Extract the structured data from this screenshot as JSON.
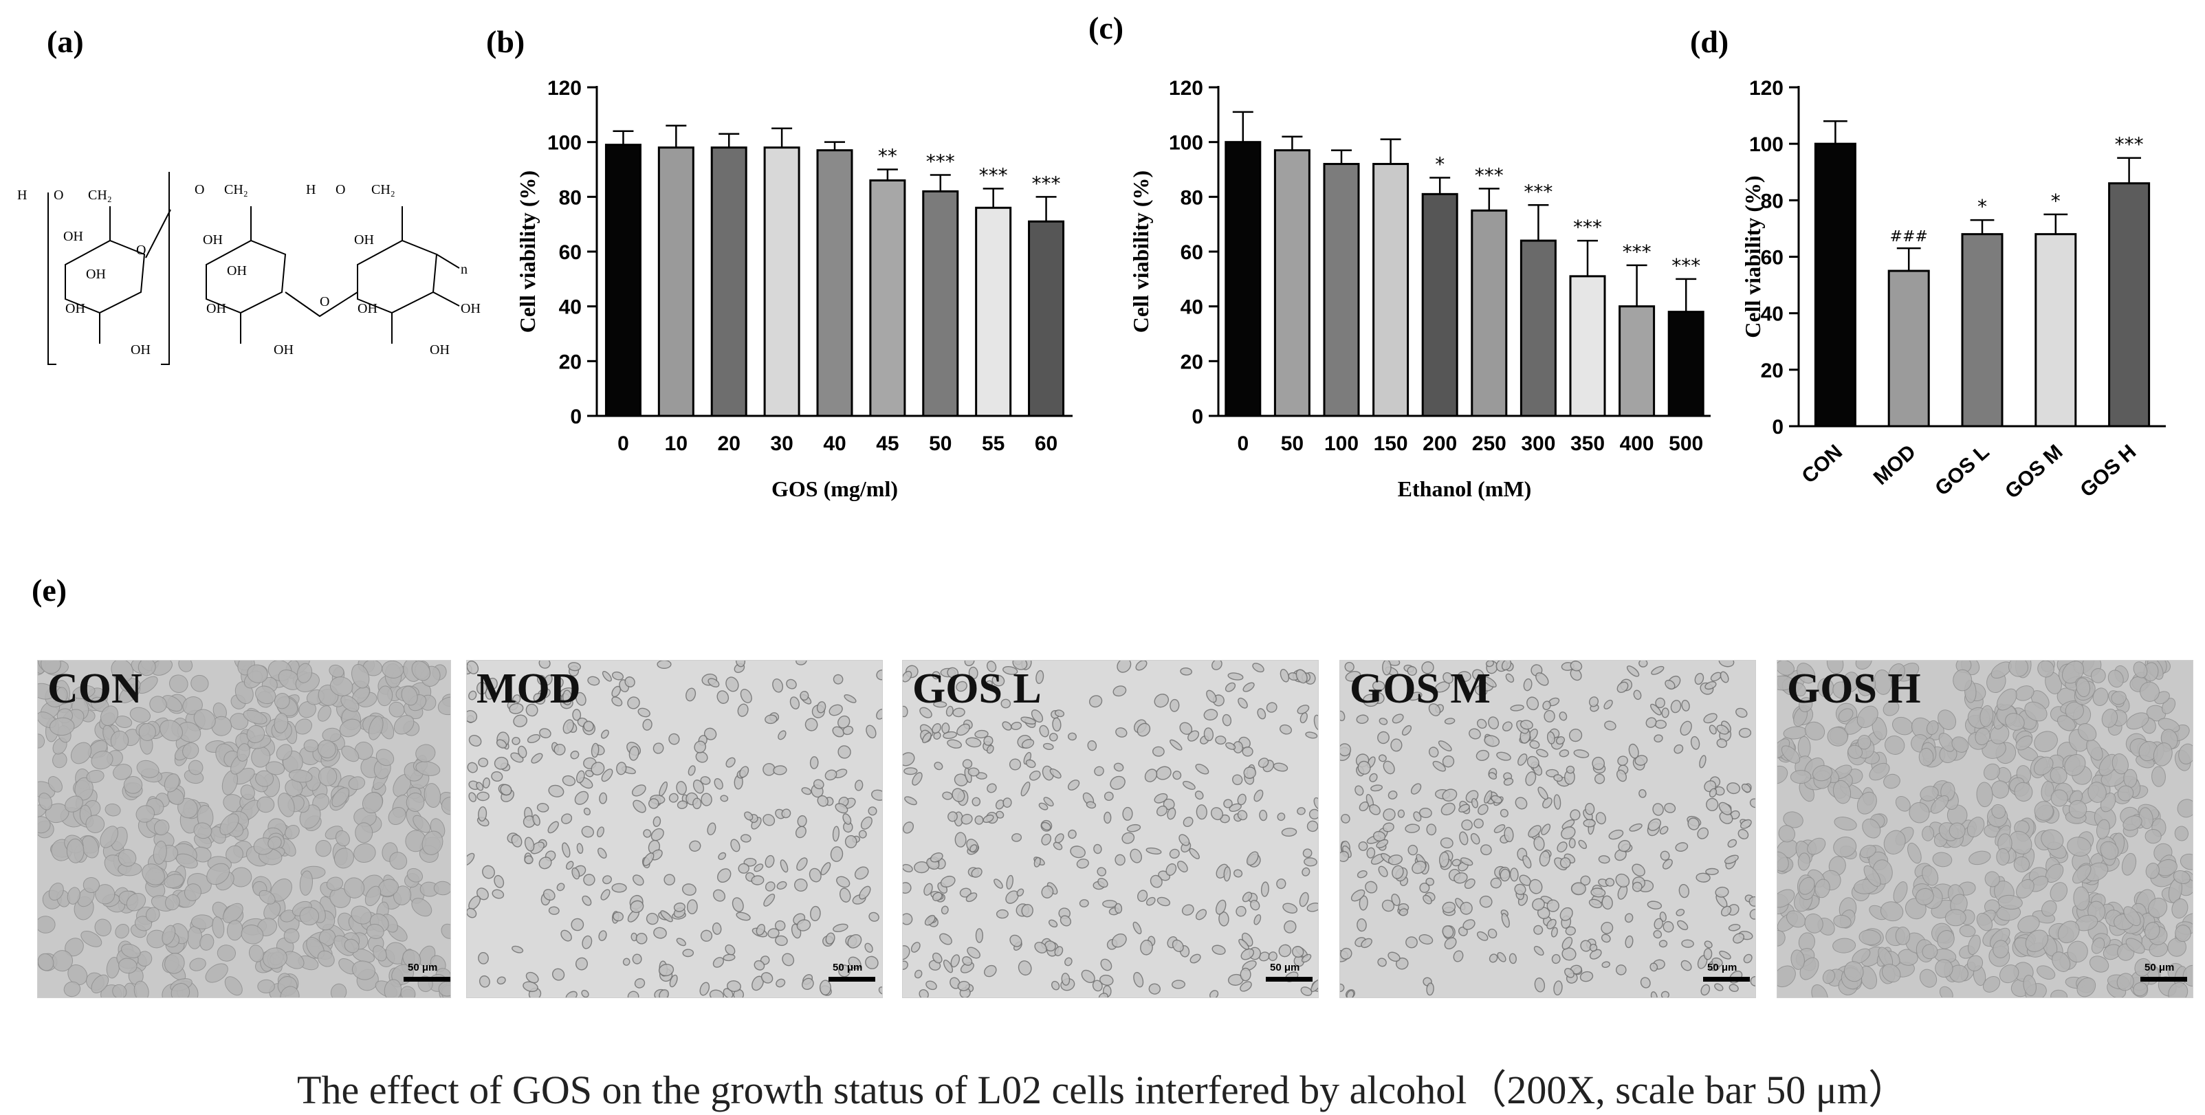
{
  "panel_labels": {
    "a": "(a)",
    "b": "(b)",
    "c": "(c)",
    "d": "(d)",
    "e": "(e)"
  },
  "structure": {
    "labels": [
      "H",
      "O",
      "CH₂",
      "O",
      "CH₂",
      "H",
      "O",
      "CH₂",
      "O",
      "OH",
      "OH",
      "OH",
      "OH",
      "OH",
      "OH",
      "OH",
      "OH",
      "OH",
      "O",
      "OH",
      "OH",
      "OH",
      "n"
    ]
  },
  "chart_data": [
    {
      "id": "b",
      "type": "bar",
      "title": "",
      "xlabel": "GOS (mg/ml)",
      "ylabel": "Cell viability (%)",
      "ylim": [
        0,
        120
      ],
      "yticks": [
        0,
        20,
        40,
        60,
        80,
        100,
        120
      ],
      "categories": [
        "0",
        "10",
        "20",
        "30",
        "40",
        "45",
        "50",
        "55",
        "60"
      ],
      "values": [
        99,
        98,
        98,
        98,
        97,
        86,
        82,
        76,
        71
      ],
      "errors": [
        5,
        8,
        5,
        7,
        3,
        4,
        6,
        7,
        9
      ],
      "significance": [
        "",
        "",
        "",
        "",
        "",
        "**",
        "***",
        "***",
        "***"
      ],
      "colors": [
        "#050505",
        "#9a9a9a",
        "#6e6e6e",
        "#d8d8d8",
        "#8a8a8a",
        "#a7a7a7",
        "#7b7b7b",
        "#e6e6e6",
        "#565656"
      ]
    },
    {
      "id": "c",
      "type": "bar",
      "title": "",
      "xlabel": "Ethanol (mM)",
      "ylabel": "Cell viability (%)",
      "ylim": [
        0,
        120
      ],
      "yticks": [
        0,
        20,
        40,
        60,
        80,
        100,
        120
      ],
      "categories": [
        "0",
        "50",
        "100",
        "150",
        "200",
        "250",
        "300",
        "350",
        "400",
        "500"
      ],
      "values": [
        100,
        97,
        92,
        92,
        81,
        75,
        64,
        51,
        40,
        38
      ],
      "errors": [
        11,
        5,
        5,
        9,
        6,
        8,
        13,
        13,
        15,
        12
      ],
      "significance": [
        "",
        "",
        "",
        "",
        "*",
        "***",
        "***",
        "***",
        "***",
        "***"
      ],
      "colors": [
        "#050505",
        "#a0a0a0",
        "#7c7c7c",
        "#c9c9c9",
        "#565656",
        "#9a9a9a",
        "#6a6a6a",
        "#e6e6e6",
        "#a3a3a3",
        "#050505"
      ]
    },
    {
      "id": "d",
      "type": "bar",
      "title": "",
      "xlabel": "",
      "ylabel": "Cell viability (%)",
      "ylim": [
        0,
        120
      ],
      "yticks": [
        0,
        20,
        40,
        60,
        80,
        100,
        120
      ],
      "categories": [
        "CON",
        "MOD",
        "GOS L",
        "GOS M",
        "GOS H"
      ],
      "values": [
        100,
        55,
        68,
        68,
        86
      ],
      "errors": [
        8,
        8,
        5,
        7,
        9
      ],
      "significance": [
        "",
        "###",
        "*",
        "*",
        "***"
      ],
      "colors": [
        "#050505",
        "#9b9b9b",
        "#7c7c7c",
        "#dcdcdc",
        "#5c5c5c"
      ]
    }
  ],
  "micrographs": [
    {
      "label": "CON",
      "scale": "50 μm"
    },
    {
      "label": "MOD",
      "scale": "50 μm"
    },
    {
      "label": "GOS L",
      "scale": "50 μm"
    },
    {
      "label": "GOS M",
      "scale": "50 μm"
    },
    {
      "label": "GOS H",
      "scale": "50 μm"
    }
  ],
  "caption": "The effect of GOS on the growth status of L02 cells interfered by alcohol（200X, scale bar 50 μm）"
}
